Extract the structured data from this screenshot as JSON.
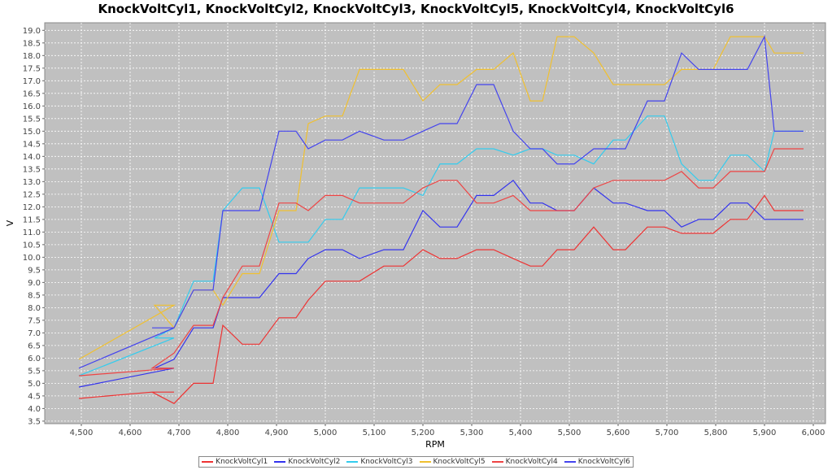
{
  "chart_data": {
    "type": "line",
    "title": "KnockVoltCyl1, KnockVoltCyl2, KnockVoltCyl3, KnockVoltCyl5, KnockVoltCyl4, KnockVoltCyl6",
    "xlabel": "RPM",
    "ylabel": "V",
    "xlim": [
      4425,
      6025
    ],
    "ylim": [
      3.4,
      19.3
    ],
    "x_ticks": [
      4500,
      4600,
      4700,
      4800,
      4900,
      5000,
      5100,
      5200,
      5300,
      5400,
      5500,
      5600,
      5700,
      5800,
      5900,
      6000
    ],
    "x_tick_labels": [
      "4,500",
      "4,600",
      "4,700",
      "4,800",
      "4,900",
      "5,000",
      "5,100",
      "5,200",
      "5,300",
      "5,400",
      "5,500",
      "5,600",
      "5,700",
      "5,800",
      "5,900",
      "6,000"
    ],
    "y_ticks": [
      3.5,
      4.0,
      4.5,
      5.0,
      5.5,
      6.0,
      6.5,
      7.0,
      7.5,
      8.0,
      8.5,
      9.0,
      9.5,
      10.0,
      10.5,
      11.0,
      11.5,
      12.0,
      12.5,
      13.0,
      13.5,
      14.0,
      14.5,
      15.0,
      15.5,
      16.0,
      16.5,
      17.0,
      17.5,
      18.0,
      18.5,
      19.0
    ],
    "y_tick_labels": [
      "3.5",
      "4.0",
      "4.5",
      "5.0",
      "5.5",
      "6.0",
      "6.5",
      "7.0",
      "7.5",
      "8.0",
      "8.5",
      "9.0",
      "9.5",
      "10.0",
      "10.5",
      "11.0",
      "11.5",
      "12.0",
      "12.5",
      "13.0",
      "13.5",
      "14.0",
      "14.5",
      "15.0",
      "15.5",
      "16.0",
      "16.5",
      "17.0",
      "17.5",
      "18.0",
      "18.5",
      "19.0"
    ],
    "grid": true,
    "legend_position": "bottom",
    "series": [
      {
        "name": "KnockVoltCyl1",
        "color": "#ee3333",
        "points": [
          [
            4495,
            4.4
          ],
          [
            4645,
            4.65
          ],
          [
            4690,
            4.65
          ],
          [
            4645,
            4.65
          ],
          [
            4690,
            4.2
          ],
          [
            4730,
            5.0
          ],
          [
            4770,
            5.0
          ],
          [
            4790,
            7.3
          ],
          [
            4830,
            6.55
          ],
          [
            4865,
            6.55
          ],
          [
            4905,
            7.6
          ],
          [
            4940,
            7.6
          ],
          [
            4965,
            8.3
          ],
          [
            5000,
            9.05
          ],
          [
            5070,
            9.05
          ],
          [
            5120,
            9.65
          ],
          [
            5160,
            9.65
          ],
          [
            5200,
            10.3
          ],
          [
            5235,
            9.95
          ],
          [
            5270,
            9.95
          ],
          [
            5310,
            10.3
          ],
          [
            5345,
            10.3
          ],
          [
            5385,
            9.95
          ],
          [
            5420,
            9.65
          ],
          [
            5445,
            9.65
          ],
          [
            5475,
            10.3
          ],
          [
            5510,
            10.3
          ],
          [
            5550,
            11.2
          ],
          [
            5590,
            10.3
          ],
          [
            5615,
            10.3
          ],
          [
            5660,
            11.2
          ],
          [
            5695,
            11.2
          ],
          [
            5730,
            10.95
          ],
          [
            5795,
            10.95
          ],
          [
            5830,
            11.5
          ],
          [
            5865,
            11.5
          ],
          [
            5900,
            12.45
          ],
          [
            5920,
            11.85
          ],
          [
            5980,
            11.85
          ]
        ]
      },
      {
        "name": "KnockVoltCyl2",
        "color": "#3333ee",
        "points": [
          [
            4495,
            4.85
          ],
          [
            4690,
            5.6
          ],
          [
            4650,
            5.6
          ],
          [
            4690,
            5.95
          ],
          [
            4730,
            7.2
          ],
          [
            4770,
            7.2
          ],
          [
            4790,
            8.4
          ],
          [
            4865,
            8.4
          ],
          [
            4905,
            9.35
          ],
          [
            4940,
            9.35
          ],
          [
            4965,
            9.95
          ],
          [
            5000,
            10.3
          ],
          [
            5035,
            10.3
          ],
          [
            5070,
            9.95
          ],
          [
            5120,
            10.3
          ],
          [
            5160,
            10.3
          ],
          [
            5200,
            11.85
          ],
          [
            5235,
            11.2
          ],
          [
            5270,
            11.2
          ],
          [
            5310,
            12.45
          ],
          [
            5345,
            12.45
          ],
          [
            5385,
            13.05
          ],
          [
            5420,
            12.15
          ],
          [
            5445,
            12.15
          ],
          [
            5475,
            11.85
          ],
          [
            5510,
            11.85
          ],
          [
            5550,
            12.75
          ],
          [
            5590,
            12.15
          ],
          [
            5615,
            12.15
          ],
          [
            5660,
            11.85
          ],
          [
            5695,
            11.85
          ],
          [
            5730,
            11.2
          ],
          [
            5765,
            11.5
          ],
          [
            5795,
            11.5
          ],
          [
            5830,
            12.15
          ],
          [
            5865,
            12.15
          ],
          [
            5900,
            11.5
          ],
          [
            5980,
            11.5
          ]
        ]
      },
      {
        "name": "KnockVoltCyl3",
        "color": "#33ccee",
        "points": [
          [
            4495,
            5.3
          ],
          [
            4690,
            6.8
          ],
          [
            4650,
            6.8
          ],
          [
            4690,
            7.2
          ],
          [
            4730,
            9.05
          ],
          [
            4770,
            9.05
          ],
          [
            4790,
            11.85
          ],
          [
            4830,
            12.75
          ],
          [
            4865,
            12.75
          ],
          [
            4905,
            10.6
          ],
          [
            4965,
            10.6
          ],
          [
            5000,
            11.5
          ],
          [
            5035,
            11.5
          ],
          [
            5070,
            12.75
          ],
          [
            5160,
            12.75
          ],
          [
            5200,
            12.45
          ],
          [
            5235,
            13.7
          ],
          [
            5270,
            13.7
          ],
          [
            5310,
            14.3
          ],
          [
            5345,
            14.3
          ],
          [
            5385,
            14.05
          ],
          [
            5420,
            14.3
          ],
          [
            5445,
            14.3
          ],
          [
            5475,
            14.05
          ],
          [
            5510,
            14.05
          ],
          [
            5550,
            13.7
          ],
          [
            5590,
            14.65
          ],
          [
            5615,
            14.65
          ],
          [
            5660,
            15.6
          ],
          [
            5695,
            15.6
          ],
          [
            5730,
            13.7
          ],
          [
            5765,
            13.05
          ],
          [
            5795,
            13.05
          ],
          [
            5830,
            14.05
          ],
          [
            5865,
            14.05
          ],
          [
            5900,
            13.4
          ],
          [
            5920,
            15.0
          ],
          [
            5980,
            15.0
          ]
        ]
      },
      {
        "name": "KnockVoltCyl5",
        "color": "#f0c030",
        "points": [
          [
            4495,
            5.95
          ],
          [
            4690,
            8.1
          ],
          [
            4650,
            8.1
          ],
          [
            4690,
            7.2
          ],
          [
            4730,
            8.7
          ],
          [
            4770,
            8.7
          ],
          [
            4790,
            8.1
          ],
          [
            4830,
            9.35
          ],
          [
            4865,
            9.35
          ],
          [
            4905,
            11.85
          ],
          [
            4940,
            11.85
          ],
          [
            4965,
            15.3
          ],
          [
            5000,
            15.6
          ],
          [
            5035,
            15.6
          ],
          [
            5070,
            17.45
          ],
          [
            5160,
            17.45
          ],
          [
            5200,
            16.2
          ],
          [
            5235,
            16.85
          ],
          [
            5270,
            16.85
          ],
          [
            5310,
            17.45
          ],
          [
            5345,
            17.45
          ],
          [
            5385,
            18.1
          ],
          [
            5420,
            16.2
          ],
          [
            5445,
            16.2
          ],
          [
            5475,
            18.75
          ],
          [
            5510,
            18.75
          ],
          [
            5550,
            18.1
          ],
          [
            5590,
            16.85
          ],
          [
            5695,
            16.85
          ],
          [
            5730,
            17.45
          ],
          [
            5795,
            17.45
          ],
          [
            5830,
            18.75
          ],
          [
            5900,
            18.75
          ],
          [
            5920,
            18.1
          ],
          [
            5980,
            18.1
          ]
        ]
      },
      {
        "name": "KnockVoltCyl4",
        "color": "#ee4444",
        "points": [
          [
            4495,
            5.3
          ],
          [
            4690,
            5.6
          ],
          [
            4645,
            5.6
          ],
          [
            4690,
            6.2
          ],
          [
            4730,
            7.3
          ],
          [
            4770,
            7.3
          ],
          [
            4790,
            8.4
          ],
          [
            4830,
            9.65
          ],
          [
            4865,
            9.65
          ],
          [
            4905,
            12.15
          ],
          [
            4940,
            12.15
          ],
          [
            4965,
            11.85
          ],
          [
            5000,
            12.45
          ],
          [
            5035,
            12.45
          ],
          [
            5070,
            12.15
          ],
          [
            5160,
            12.15
          ],
          [
            5200,
            12.75
          ],
          [
            5235,
            13.05
          ],
          [
            5270,
            13.05
          ],
          [
            5310,
            12.15
          ],
          [
            5345,
            12.15
          ],
          [
            5385,
            12.45
          ],
          [
            5420,
            11.85
          ],
          [
            5475,
            11.85
          ],
          [
            5510,
            11.85
          ],
          [
            5550,
            12.75
          ],
          [
            5590,
            13.05
          ],
          [
            5695,
            13.05
          ],
          [
            5730,
            13.4
          ],
          [
            5765,
            12.75
          ],
          [
            5795,
            12.75
          ],
          [
            5830,
            13.4
          ],
          [
            5900,
            13.4
          ],
          [
            5920,
            14.3
          ],
          [
            5980,
            14.3
          ]
        ]
      },
      {
        "name": "KnockVoltCyl6",
        "color": "#4444ee",
        "points": [
          [
            4495,
            5.6
          ],
          [
            4690,
            7.2
          ],
          [
            4645,
            7.2
          ],
          [
            4690,
            7.2
          ],
          [
            4730,
            8.7
          ],
          [
            4770,
            8.7
          ],
          [
            4790,
            11.85
          ],
          [
            4865,
            11.85
          ],
          [
            4905,
            15.0
          ],
          [
            4940,
            15.0
          ],
          [
            4965,
            14.3
          ],
          [
            5000,
            14.65
          ],
          [
            5035,
            14.65
          ],
          [
            5070,
            15.0
          ],
          [
            5120,
            14.65
          ],
          [
            5160,
            14.65
          ],
          [
            5200,
            15.0
          ],
          [
            5235,
            15.3
          ],
          [
            5270,
            15.3
          ],
          [
            5310,
            16.85
          ],
          [
            5345,
            16.85
          ],
          [
            5385,
            15.0
          ],
          [
            5420,
            14.3
          ],
          [
            5445,
            14.3
          ],
          [
            5475,
            13.7
          ],
          [
            5510,
            13.7
          ],
          [
            5550,
            14.3
          ],
          [
            5615,
            14.3
          ],
          [
            5660,
            16.2
          ],
          [
            5695,
            16.2
          ],
          [
            5730,
            18.1
          ],
          [
            5765,
            17.45
          ],
          [
            5865,
            17.45
          ],
          [
            5900,
            18.75
          ],
          [
            5920,
            15.0
          ],
          [
            5980,
            15.0
          ]
        ]
      }
    ]
  }
}
